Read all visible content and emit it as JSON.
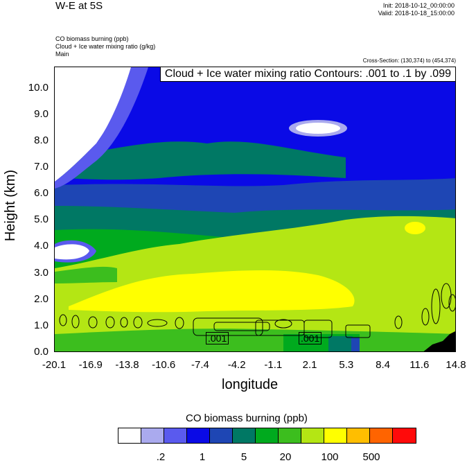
{
  "header": {
    "title": "W-E at 5S",
    "init": "Init: 2018-10-12_00:00:00",
    "valid": "Valid: 2018-10-18_15:00:00",
    "desc1": "CO biomass burning   (ppb)",
    "desc2": "Cloud + Ice water mixing ratio   (g/kg)",
    "desc3": "Main",
    "cross_section": "Cross-Section: (130,374) to (454,374)"
  },
  "chart_data": {
    "type": "heatmap",
    "title": "CO biomass burning   (ppb)",
    "contour_info": "Cloud + Ice water mixing ratio Contours: .001 to .1 by .099",
    "contour_labels": [
      ".001",
      ".001"
    ],
    "xlabel": "longitude",
    "ylabel": "Height (km)",
    "x_ticks": [
      "-20.1",
      "-16.9",
      "-13.8",
      "-10.6",
      "-7.4",
      "-4.2",
      "-1.1",
      "2.1",
      "5.3",
      "8.4",
      "11.6",
      "14.8"
    ],
    "y_ticks": [
      "0.0",
      "1.0",
      "2.0",
      "3.0",
      "4.0",
      "5.0",
      "6.0",
      "7.0",
      "8.0",
      "9.0",
      "10.0"
    ],
    "xlim": [
      -20.1,
      14.8
    ],
    "ylim": [
      0,
      10.8
    ],
    "colorbar": {
      "colors": [
        "#ffffff",
        "#aaaaee",
        "#5a5aee",
        "#0a0ae6",
        "#1e46b4",
        "#007864",
        "#00aa1e",
        "#3cbe1e",
        "#b4e614",
        "#ffff00",
        "#ffbe00",
        "#ff6400",
        "#ff0a0a"
      ],
      "labels": [
        ".2",
        "1",
        "5",
        "20",
        "100",
        "500"
      ]
    }
  }
}
